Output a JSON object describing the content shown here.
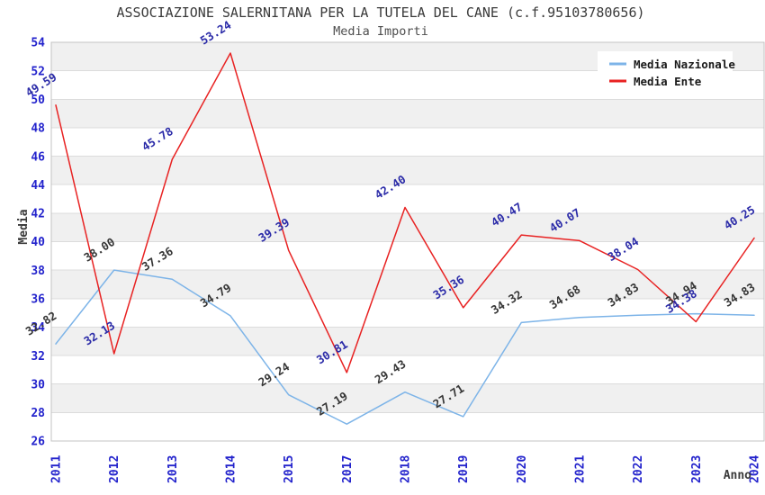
{
  "page": {
    "title": "ASSOCIAZIONE SALERNITANA PER LA TUTELA DEL CANE (c.f.95103780656)",
    "subtitle": "Media Importi"
  },
  "colors": {
    "background": "#ffffff",
    "band": "#f0f0f0",
    "grid": "#dcdcdc",
    "spine": "#c3c3c3",
    "axis_tick": "#2323cc",
    "title": "#3a3a3a",
    "subtitle": "#4d4d4d",
    "axis_label": "#3a3a3a"
  },
  "chart_data": {
    "type": "line",
    "title": "ASSOCIAZIONE SALERNITANA PER LA TUTELA DEL CANE (c.f.95103780656)",
    "subtitle": "Media Importi",
    "xlabel": "Anno",
    "ylabel": "Media",
    "categories": [
      "2011",
      "2012",
      "2013",
      "2014",
      "2015",
      "2017",
      "2018",
      "2019",
      "2020",
      "2021",
      "2022",
      "2023",
      "2024"
    ],
    "series": [
      {
        "name": "Media Nazionale",
        "color": "#7db4e8",
        "label_color": "#363636",
        "values": [
          32.82,
          38.0,
          37.36,
          34.79,
          29.24,
          27.19,
          29.43,
          27.71,
          34.32,
          34.68,
          34.83,
          34.94,
          34.83
        ]
      },
      {
        "name": "Media Ente",
        "color": "#e82222",
        "label_color": "#2b2ba8",
        "values": [
          49.59,
          32.13,
          45.78,
          53.24,
          39.39,
          30.81,
          42.4,
          35.36,
          40.47,
          40.07,
          38.04,
          34.38,
          40.25
        ]
      }
    ],
    "ylim": [
      26,
      54
    ],
    "ytick_step": 2,
    "grid": true,
    "banded_background": true,
    "legend_position": "top-right"
  }
}
